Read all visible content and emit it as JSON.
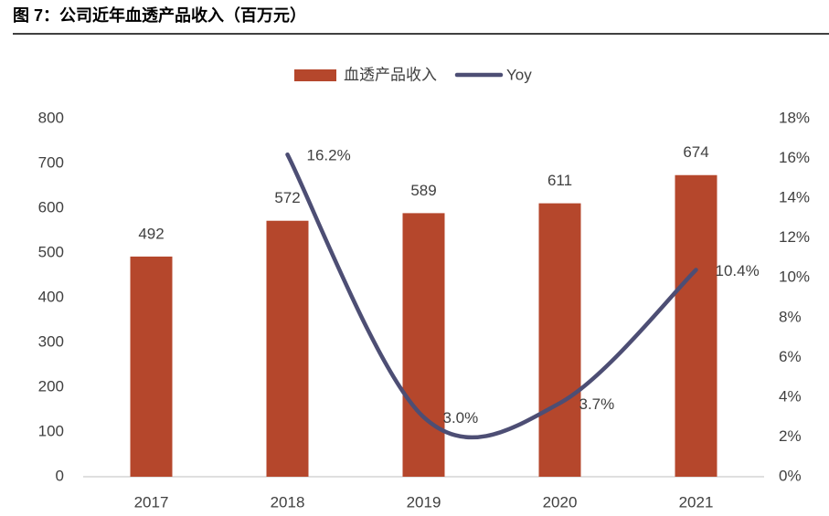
{
  "chart_data": {
    "type": "combo",
    "title": "图 7：公司近年血透产品收入（百万元）",
    "categories": [
      "2017",
      "2018",
      "2019",
      "2020",
      "2021"
    ],
    "series": [
      {
        "name": "血透产品收入",
        "type": "bar",
        "color": "#b5472c",
        "values": [
          492,
          572,
          589,
          611,
          674
        ]
      },
      {
        "name": "Yoy",
        "type": "line",
        "axis": "y2",
        "color": "#4d4e74",
        "values": [
          null,
          16.2,
          3.0,
          3.7,
          10.4
        ],
        "value_labels": [
          null,
          "16.2%",
          "3.0%",
          "3.7%",
          "10.4%"
        ]
      }
    ],
    "ylim": [
      0,
      800
    ],
    "yticks": [
      0,
      100,
      200,
      300,
      400,
      500,
      600,
      700,
      800
    ],
    "y2lim": [
      0,
      18
    ],
    "y2ticks": [
      {
        "value": 0,
        "label": "0%"
      },
      {
        "value": 2,
        "label": "2%"
      },
      {
        "value": 4,
        "label": "4%"
      },
      {
        "value": 6,
        "label": "6%"
      },
      {
        "value": 8,
        "label": "8%"
      },
      {
        "value": 10,
        "label": "10%"
      },
      {
        "value": 12,
        "label": "12%"
      },
      {
        "value": 14,
        "label": "14%"
      },
      {
        "value": 16,
        "label": "16%"
      },
      {
        "value": 18,
        "label": "18%"
      }
    ],
    "grid": false,
    "legend": "top"
  }
}
